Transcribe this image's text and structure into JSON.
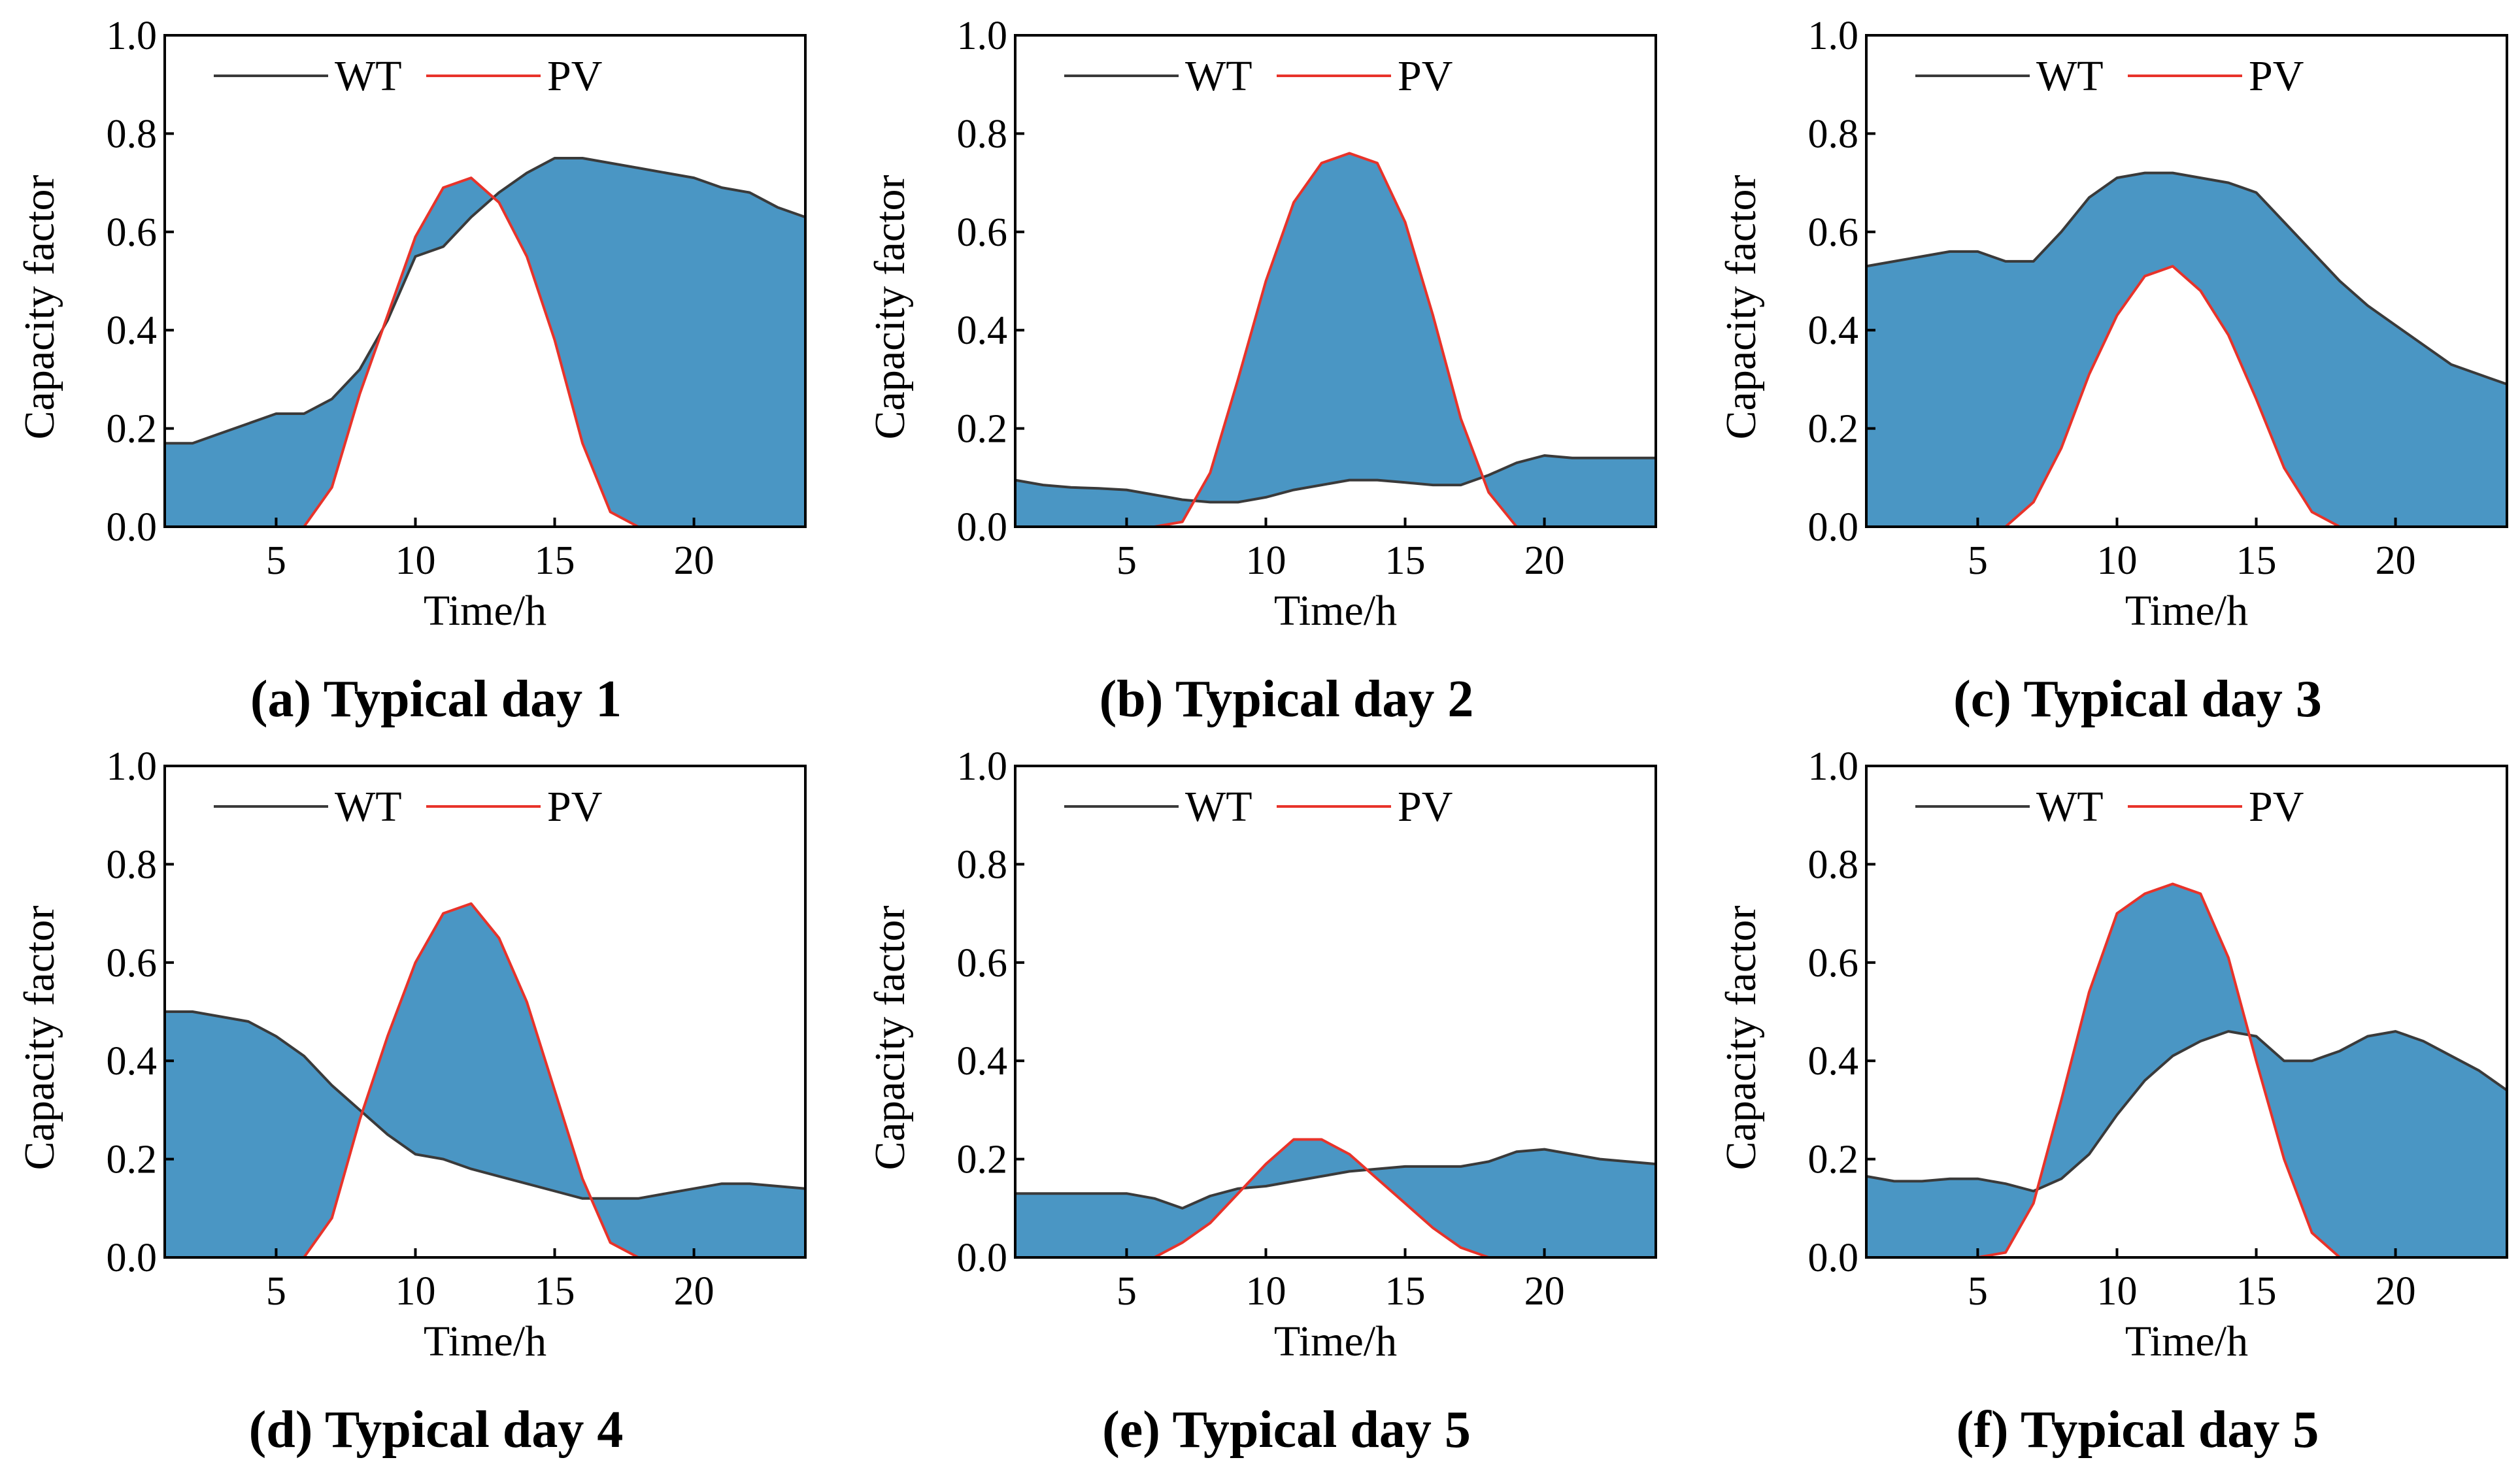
{
  "colors": {
    "fill": "#4a96c4",
    "wt_line": "#3a3a3a",
    "pv_line": "#e8332a",
    "axis": "#000000"
  },
  "chart_data": [
    {
      "type": "area",
      "title": "(a) Typical day 1",
      "xlabel": "Time/h",
      "ylabel": "Capacity factor",
      "xlim": [
        1,
        24
      ],
      "ylim": [
        0,
        1.0
      ],
      "xticks": [
        5,
        10,
        15,
        20
      ],
      "yticks": [
        0.0,
        0.2,
        0.4,
        0.6,
        0.8,
        1.0
      ],
      "legend": "top",
      "x": [
        1,
        2,
        3,
        4,
        5,
        6,
        7,
        8,
        9,
        10,
        11,
        12,
        13,
        14,
        15,
        16,
        17,
        18,
        19,
        20,
        21,
        22,
        23,
        24
      ],
      "series": [
        {
          "name": "WT",
          "values": [
            0.17,
            0.17,
            0.19,
            0.21,
            0.23,
            0.23,
            0.26,
            0.32,
            0.42,
            0.55,
            0.57,
            0.63,
            0.68,
            0.72,
            0.75,
            0.75,
            0.74,
            0.73,
            0.72,
            0.71,
            0.69,
            0.68,
            0.65,
            0.63
          ]
        },
        {
          "name": "PV",
          "values": [
            0,
            0,
            0,
            0,
            0,
            0,
            0.08,
            0.27,
            0.43,
            0.59,
            0.69,
            0.71,
            0.66,
            0.55,
            0.38,
            0.17,
            0.03,
            0,
            0,
            0,
            0,
            0,
            0,
            0
          ]
        }
      ]
    },
    {
      "type": "area",
      "title": "(b) Typical day 2",
      "xlabel": "Time/h",
      "ylabel": "Capacity factor",
      "xlim": [
        1,
        24
      ],
      "ylim": [
        0,
        1.0
      ],
      "xticks": [
        5,
        10,
        15,
        20
      ],
      "yticks": [
        0.0,
        0.2,
        0.4,
        0.6,
        0.8,
        1.0
      ],
      "legend": "top",
      "x": [
        1,
        2,
        3,
        4,
        5,
        6,
        7,
        8,
        9,
        10,
        11,
        12,
        13,
        14,
        15,
        16,
        17,
        18,
        19,
        20,
        21,
        22,
        23,
        24
      ],
      "series": [
        {
          "name": "WT",
          "values": [
            0.095,
            0.085,
            0.08,
            0.078,
            0.075,
            0.065,
            0.055,
            0.05,
            0.05,
            0.06,
            0.075,
            0.085,
            0.095,
            0.095,
            0.09,
            0.085,
            0.085,
            0.105,
            0.13,
            0.145,
            0.14,
            0.14,
            0.14,
            0.14
          ]
        },
        {
          "name": "PV",
          "values": [
            0,
            0,
            0,
            0,
            0,
            0,
            0.01,
            0.11,
            0.3,
            0.5,
            0.66,
            0.74,
            0.76,
            0.74,
            0.62,
            0.43,
            0.22,
            0.07,
            0,
            0,
            0,
            0,
            0,
            0
          ]
        }
      ]
    },
    {
      "type": "area",
      "title": "(c) Typical day 3",
      "xlabel": "Time/h",
      "ylabel": "Capacity factor",
      "xlim": [
        1,
        24
      ],
      "ylim": [
        0,
        1.0
      ],
      "xticks": [
        5,
        10,
        15,
        20
      ],
      "yticks": [
        0.0,
        0.2,
        0.4,
        0.6,
        0.8,
        1.0
      ],
      "legend": "top",
      "x": [
        1,
        2,
        3,
        4,
        5,
        6,
        7,
        8,
        9,
        10,
        11,
        12,
        13,
        14,
        15,
        16,
        17,
        18,
        19,
        20,
        21,
        22,
        23,
        24
      ],
      "series": [
        {
          "name": "WT",
          "values": [
            0.53,
            0.54,
            0.55,
            0.56,
            0.56,
            0.54,
            0.54,
            0.6,
            0.67,
            0.71,
            0.72,
            0.72,
            0.71,
            0.7,
            0.68,
            0.62,
            0.56,
            0.5,
            0.45,
            0.41,
            0.37,
            0.33,
            0.31,
            0.29
          ]
        },
        {
          "name": "PV",
          "values": [
            0,
            0,
            0,
            0,
            0,
            0,
            0.05,
            0.16,
            0.31,
            0.43,
            0.51,
            0.53,
            0.48,
            0.39,
            0.26,
            0.12,
            0.03,
            0,
            0,
            0,
            0,
            0,
            0,
            0
          ]
        }
      ]
    },
    {
      "type": "area",
      "title": "(d) Typical day 4",
      "xlabel": "Time/h",
      "ylabel": "Capacity factor",
      "xlim": [
        1,
        24
      ],
      "ylim": [
        0,
        1.0
      ],
      "xticks": [
        5,
        10,
        15,
        20
      ],
      "yticks": [
        0.0,
        0.2,
        0.4,
        0.6,
        0.8,
        1.0
      ],
      "legend": "top",
      "x": [
        1,
        2,
        3,
        4,
        5,
        6,
        7,
        8,
        9,
        10,
        11,
        12,
        13,
        14,
        15,
        16,
        17,
        18,
        19,
        20,
        21,
        22,
        23,
        24
      ],
      "series": [
        {
          "name": "WT",
          "values": [
            0.5,
            0.5,
            0.49,
            0.48,
            0.45,
            0.41,
            0.35,
            0.3,
            0.25,
            0.21,
            0.2,
            0.18,
            0.165,
            0.15,
            0.135,
            0.12,
            0.12,
            0.12,
            0.13,
            0.14,
            0.15,
            0.15,
            0.145,
            0.14
          ]
        },
        {
          "name": "PV",
          "values": [
            0,
            0,
            0,
            0,
            0,
            0,
            0.08,
            0.28,
            0.45,
            0.6,
            0.7,
            0.72,
            0.65,
            0.52,
            0.34,
            0.16,
            0.03,
            0,
            0,
            0,
            0,
            0,
            0,
            0
          ]
        }
      ]
    },
    {
      "type": "area",
      "title": "(e) Typical day 5",
      "xlabel": "Time/h",
      "ylabel": "Capacity factor",
      "xlim": [
        1,
        24
      ],
      "ylim": [
        0,
        1.0
      ],
      "xticks": [
        5,
        10,
        15,
        20
      ],
      "yticks": [
        0.0,
        0.2,
        0.4,
        0.6,
        0.8,
        1.0
      ],
      "legend": "top",
      "x": [
        1,
        2,
        3,
        4,
        5,
        6,
        7,
        8,
        9,
        10,
        11,
        12,
        13,
        14,
        15,
        16,
        17,
        18,
        19,
        20,
        21,
        22,
        23,
        24
      ],
      "series": [
        {
          "name": "WT",
          "values": [
            0.13,
            0.13,
            0.13,
            0.13,
            0.13,
            0.12,
            0.1,
            0.125,
            0.14,
            0.145,
            0.155,
            0.165,
            0.175,
            0.18,
            0.185,
            0.185,
            0.185,
            0.195,
            0.215,
            0.22,
            0.21,
            0.2,
            0.195,
            0.19
          ]
        },
        {
          "name": "PV",
          "values": [
            0,
            0,
            0,
            0,
            0,
            0,
            0.03,
            0.07,
            0.13,
            0.19,
            0.24,
            0.24,
            0.21,
            0.16,
            0.11,
            0.06,
            0.02,
            0,
            0,
            0,
            0,
            0,
            0,
            0
          ]
        }
      ]
    },
    {
      "type": "area",
      "title": "(f) Typical day 5",
      "xlabel": "Time/h",
      "ylabel": "Capacity factor",
      "xlim": [
        1,
        24
      ],
      "ylim": [
        0,
        1.0
      ],
      "xticks": [
        5,
        10,
        15,
        20
      ],
      "yticks": [
        0.0,
        0.2,
        0.4,
        0.6,
        0.8,
        1.0
      ],
      "legend": "top",
      "x": [
        1,
        2,
        3,
        4,
        5,
        6,
        7,
        8,
        9,
        10,
        11,
        12,
        13,
        14,
        15,
        16,
        17,
        18,
        19,
        20,
        21,
        22,
        23,
        24
      ],
      "series": [
        {
          "name": "WT",
          "values": [
            0.165,
            0.155,
            0.155,
            0.16,
            0.16,
            0.15,
            0.135,
            0.16,
            0.21,
            0.29,
            0.36,
            0.41,
            0.44,
            0.46,
            0.45,
            0.4,
            0.4,
            0.42,
            0.45,
            0.46,
            0.44,
            0.41,
            0.38,
            0.34
          ]
        },
        {
          "name": "PV",
          "values": [
            0,
            0,
            0,
            0,
            0,
            0.01,
            0.11,
            0.32,
            0.54,
            0.7,
            0.74,
            0.76,
            0.74,
            0.61,
            0.4,
            0.2,
            0.05,
            0,
            0,
            0,
            0,
            0,
            0,
            0
          ]
        }
      ]
    }
  ]
}
